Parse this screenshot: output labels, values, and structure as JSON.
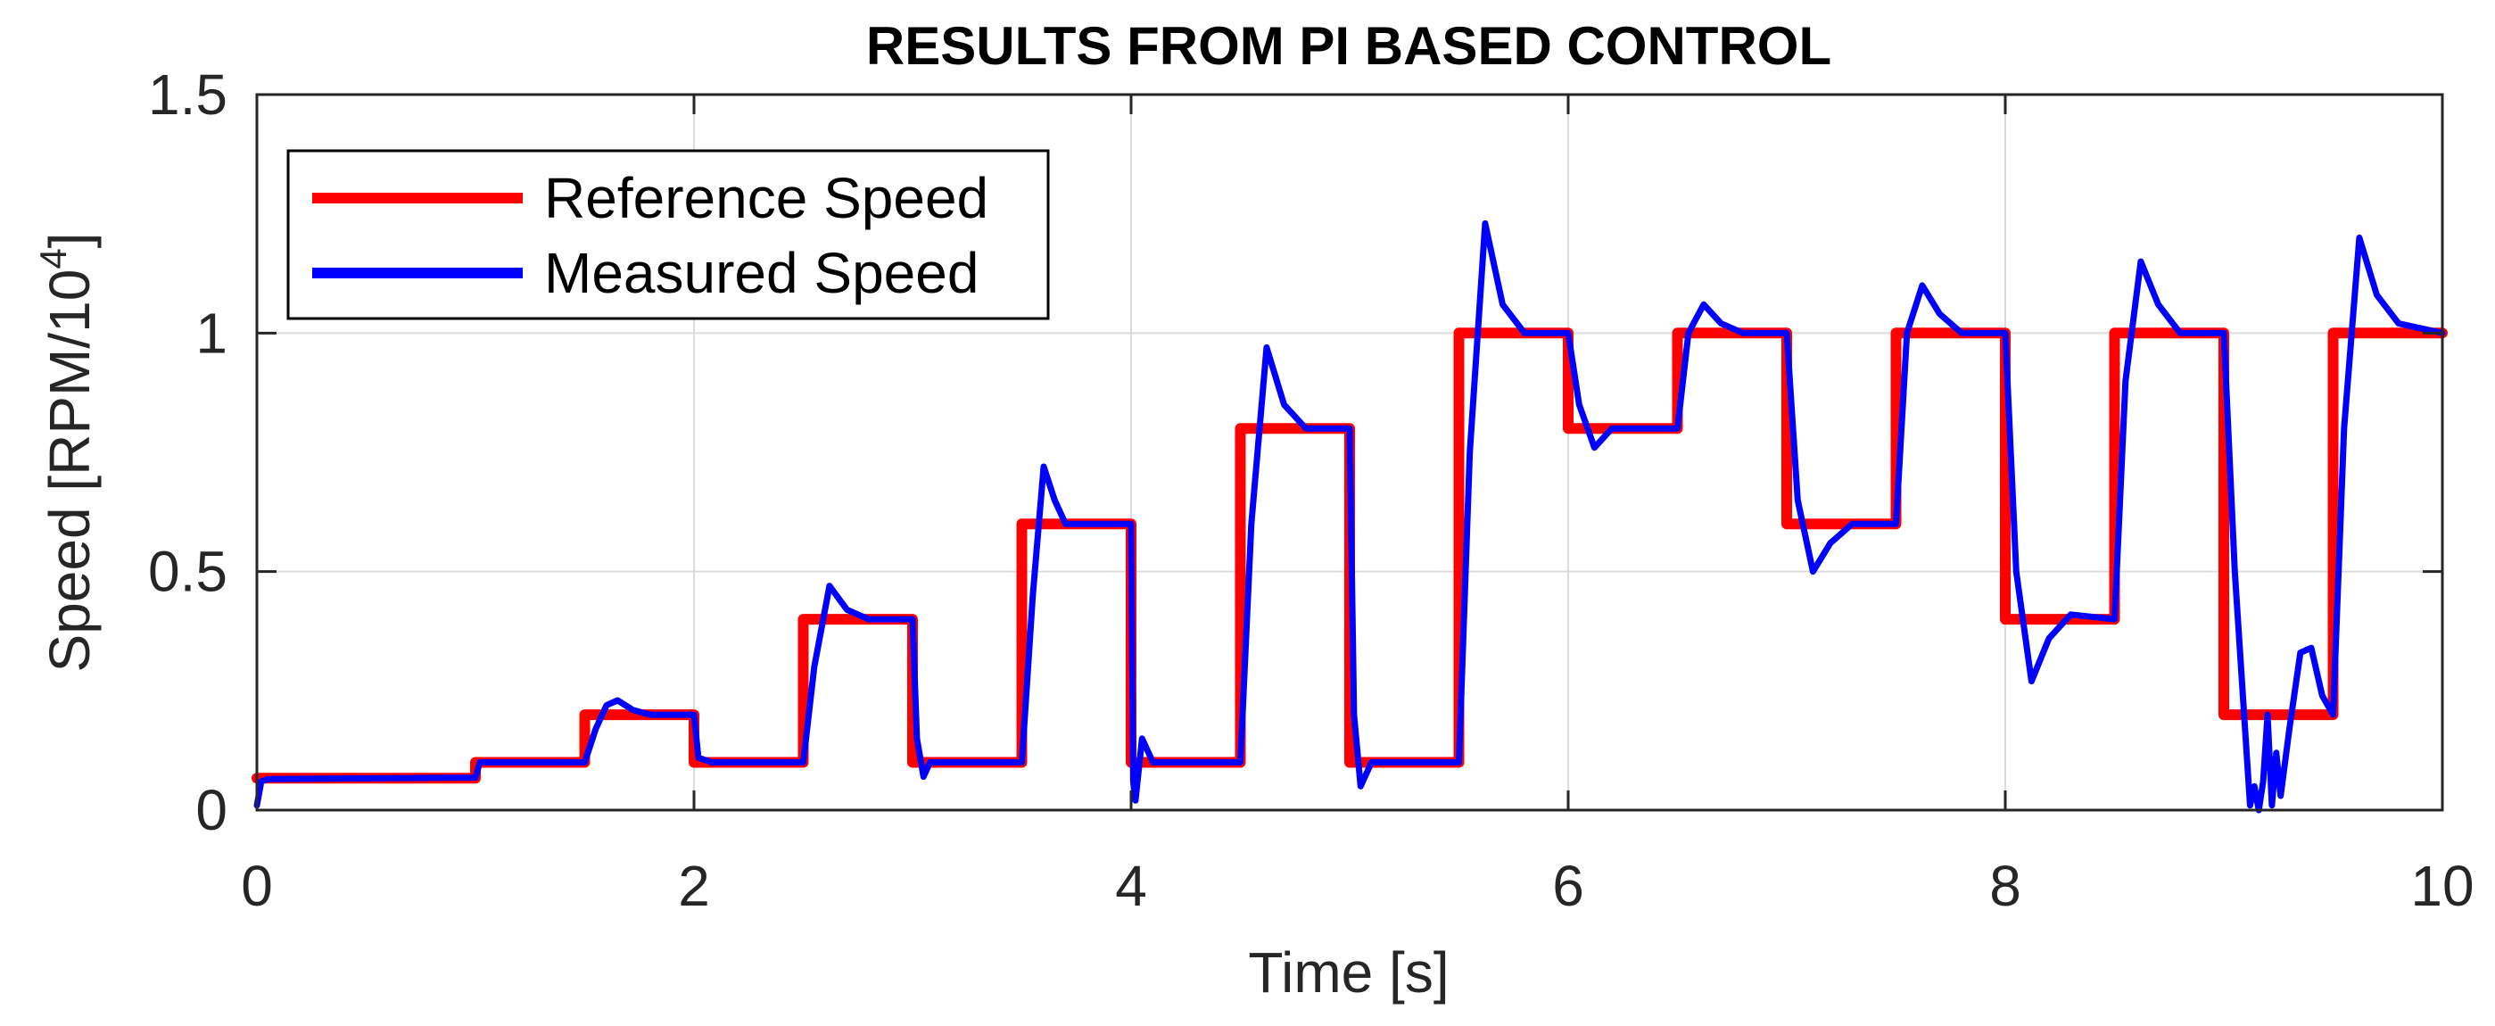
{
  "chart_data": {
    "type": "line",
    "title": "RESULTS FROM PI BASED CONTROL",
    "xlabel": "Time [s]",
    "ylabel_main": "Speed  [RPM/10",
    "ylabel_sup": "4",
    "ylabel_end": "]",
    "xlim": [
      0,
      10
    ],
    "ylim": [
      0,
      1.5
    ],
    "xticks": [
      0,
      2,
      4,
      6,
      8,
      10
    ],
    "xtick_labels": [
      "0",
      "2",
      "4",
      "6",
      "8",
      "10"
    ],
    "yticks": [
      0,
      0.5,
      1,
      1.5
    ],
    "ytick_labels": [
      "0",
      "0.5",
      "1",
      "1.5"
    ],
    "grid": true,
    "legend_position": "top-left",
    "series": [
      {
        "name": "Reference Speed",
        "color": "#ff0000",
        "x": [
          0,
          1,
          1,
          1.5,
          1.5,
          2,
          2,
          2.5,
          2.5,
          3,
          3,
          3.5,
          3.5,
          4,
          4,
          4.5,
          4.5,
          5,
          5,
          5.5,
          5.5,
          6,
          6,
          6.5,
          6.5,
          7,
          7,
          7.5,
          7.5,
          8,
          8,
          8.5,
          8.5,
          9,
          9,
          9.5,
          9.5,
          10
        ],
        "y": [
          0.067,
          0.067,
          0.1,
          0.1,
          0.2,
          0.2,
          0.1,
          0.1,
          0.4,
          0.4,
          0.1,
          0.1,
          0.6,
          0.6,
          0.1,
          0.1,
          0.8,
          0.8,
          0.1,
          0.1,
          1.0,
          1.0,
          0.8,
          0.8,
          1.0,
          1.0,
          0.6,
          0.6,
          1.0,
          1.0,
          0.4,
          0.4,
          1.0,
          1.0,
          0.2,
          0.2,
          1.0,
          1.0
        ]
      },
      {
        "name": "Measured Speed",
        "color": "#0000ff",
        "x": [
          0,
          0.02,
          0.05,
          1.0,
          1.02,
          1.5,
          1.55,
          1.6,
          1.65,
          1.72,
          1.8,
          2.0,
          2.02,
          2.08,
          2.5,
          2.55,
          2.62,
          2.7,
          2.8,
          3.0,
          3.02,
          3.05,
          3.08,
          3.12,
          3.5,
          3.55,
          3.6,
          3.65,
          3.7,
          3.8,
          4.0,
          4.01,
          4.02,
          4.05,
          4.1,
          4.5,
          4.55,
          4.62,
          4.7,
          4.8,
          5.0,
          5.02,
          5.05,
          5.1,
          5.5,
          5.55,
          5.62,
          5.7,
          5.8,
          6.0,
          6.05,
          6.12,
          6.2,
          6.3,
          6.5,
          6.55,
          6.62,
          6.7,
          6.8,
          7.0,
          7.05,
          7.12,
          7.2,
          7.3,
          7.5,
          7.55,
          7.62,
          7.7,
          7.8,
          8.0,
          8.05,
          8.12,
          8.2,
          8.3,
          8.5,
          8.55,
          8.62,
          8.7,
          8.8,
          9.0,
          9.05,
          9.1,
          9.12,
          9.14,
          9.16,
          9.18,
          9.2,
          9.22,
          9.24,
          9.26,
          9.3,
          9.35,
          9.4,
          9.45,
          9.5,
          9.55,
          9.62,
          9.7,
          9.8,
          10.0
        ],
        "y": [
          0.01,
          0.06,
          0.065,
          0.068,
          0.1,
          0.1,
          0.17,
          0.22,
          0.23,
          0.21,
          0.2,
          0.2,
          0.11,
          0.1,
          0.1,
          0.3,
          0.47,
          0.42,
          0.4,
          0.4,
          0.15,
          0.07,
          0.1,
          0.1,
          0.1,
          0.45,
          0.72,
          0.65,
          0.6,
          0.6,
          0.6,
          0.06,
          0.02,
          0.15,
          0.1,
          0.1,
          0.6,
          0.97,
          0.85,
          0.8,
          0.8,
          0.2,
          0.05,
          0.1,
          0.1,
          0.75,
          1.23,
          1.06,
          1.0,
          1.0,
          0.85,
          0.76,
          0.8,
          0.8,
          0.8,
          1.0,
          1.06,
          1.02,
          1.0,
          1.0,
          0.65,
          0.5,
          0.56,
          0.6,
          0.6,
          1.0,
          1.1,
          1.04,
          1.0,
          1.0,
          0.5,
          0.27,
          0.36,
          0.41,
          0.4,
          0.9,
          1.15,
          1.06,
          1.0,
          1.0,
          0.5,
          0.15,
          0.01,
          0.05,
          0.0,
          0.06,
          0.2,
          0.01,
          0.12,
          0.03,
          0.17,
          0.33,
          0.34,
          0.24,
          0.2,
          0.8,
          1.2,
          1.08,
          1.02,
          1.0
        ]
      }
    ]
  }
}
